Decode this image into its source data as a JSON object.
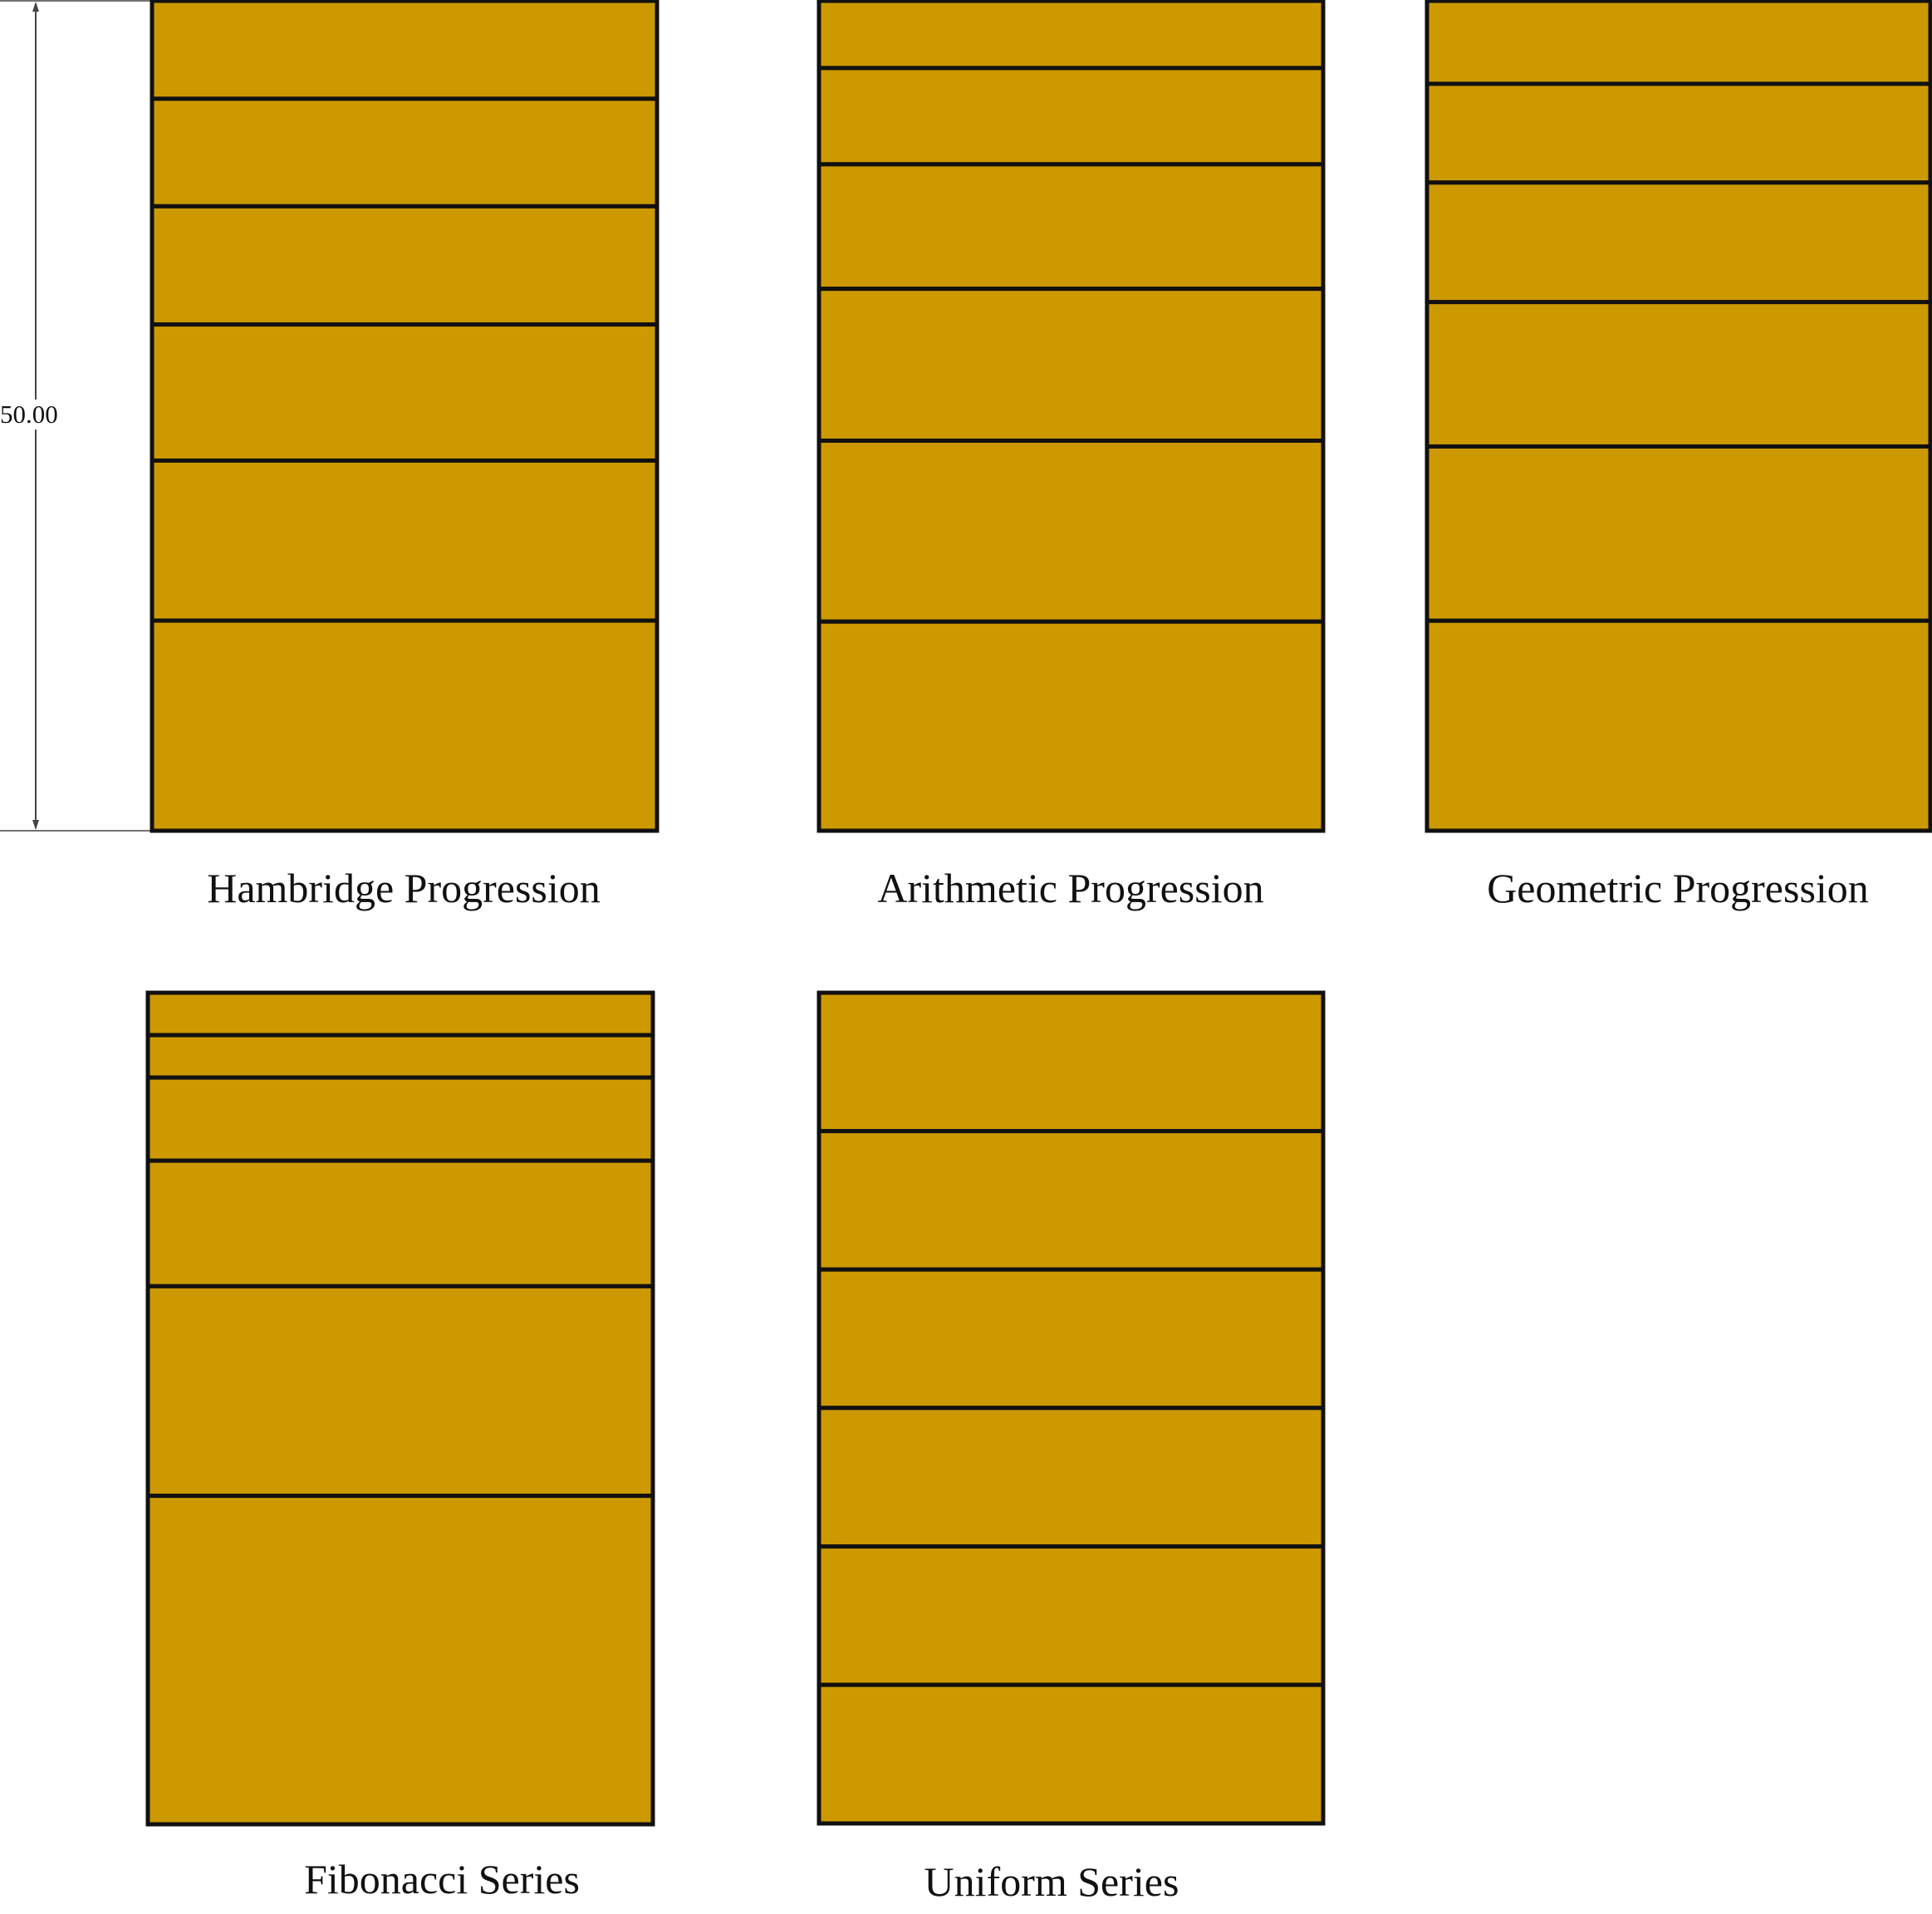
{
  "colors": {
    "fill": "#cc9900",
    "stroke": "#111111",
    "dimension": "#444444"
  },
  "dimension": {
    "label": "50.00",
    "value": 50.0
  },
  "panels": [
    {
      "name": "hambridge",
      "caption": "Hambridge Progression",
      "drawers_top_to_bottom": [
        5.9,
        6.48,
        7.12,
        8.2,
        9.64,
        12.66
      ]
    },
    {
      "name": "arithmetic",
      "caption": "Arithmetic Progression",
      "drawers_top_to_bottom": [
        4.05,
        5.8,
        7.5,
        9.15,
        10.9,
        12.6
      ]
    },
    {
      "name": "geometric",
      "caption": "Geometric Progression",
      "drawers_top_to_bottom": [
        5.0,
        5.95,
        7.2,
        8.7,
        10.5,
        12.65
      ]
    },
    {
      "name": "fibonacci",
      "caption": "Fibonacci Series",
      "drawers_top_to_bottom": [
        2.55,
        2.55,
        5.0,
        7.55,
        12.6,
        19.75
      ]
    },
    {
      "name": "uniform",
      "caption": "Uniform Series",
      "drawers_top_to_bottom": [
        8.33,
        8.33,
        8.33,
        8.34,
        8.33,
        8.34
      ]
    }
  ]
}
